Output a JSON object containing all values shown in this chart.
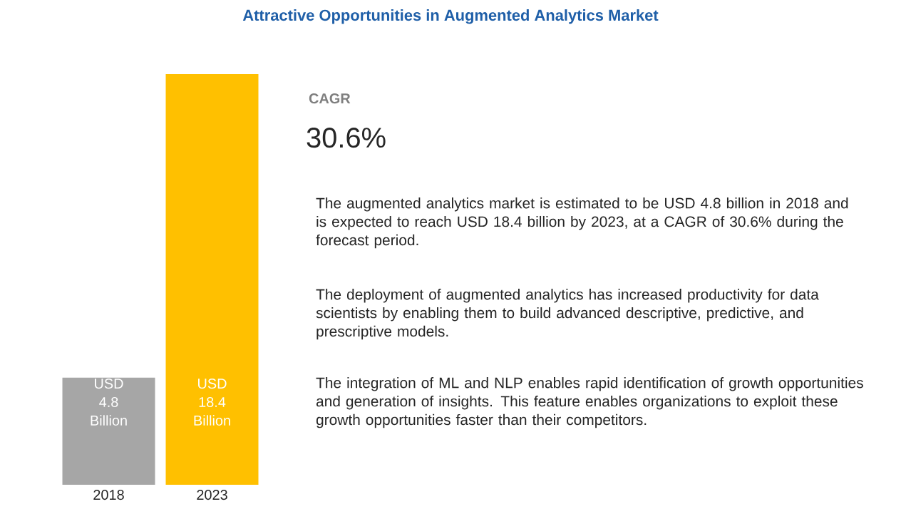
{
  "chart_data": {
    "type": "bar",
    "title": "Attractive Opportunities in Augmented Analytics Market",
    "categories": [
      "2018",
      "2023"
    ],
    "values": [
      4.8,
      18.4
    ],
    "colors": [
      "#a6a6a6",
      "#ffc000"
    ],
    "value_labels": [
      "USD 4.8 Billion",
      "USD 18.4 Billion"
    ],
    "annotations": [
      "CAGR",
      "30.6%",
      "The augmented analytics market is estimated to be USD 4.8 billion in 2018 and is expected to reach USD 18.4 billion by 2023, at a CAGR of 30.6% during the forecast period.",
      "The deployment of augmented analytics has increased productivity for data scientists by enabling them to build advanced descriptive, predictive, and prescriptive models.",
      "The integration of ML and NLP enables rapid identification of growth opportunities and generation of insights. This feature enables organizations to exploit these growth opportunities faster than their competitors."
    ]
  }
}
